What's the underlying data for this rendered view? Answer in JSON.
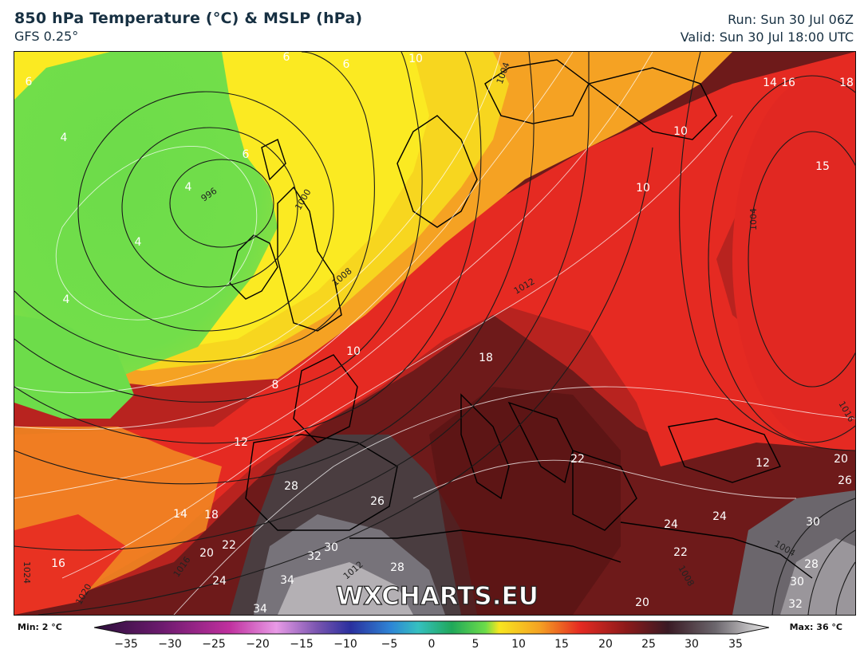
{
  "header": {
    "title": "850 hPa Temperature (°C) & MSLP (hPa)",
    "model": "GFS 0.25°",
    "run": "Run: Sun 30 Jul 06Z",
    "valid": "Valid: Sun 30 Jul 18:00 UTC"
  },
  "watermark": "WXCHARTS.EU",
  "colorbar": {
    "min_label": "Min: 2 °C",
    "max_label": "Max: 36 °C",
    "ticks": [
      "−35",
      "−30",
      "−25",
      "−20",
      "−15",
      "−10",
      "−5",
      "0",
      "5",
      "10",
      "15",
      "20",
      "25",
      "30",
      "35"
    ]
  },
  "map_labels": {
    "t1": "6",
    "t2": "4",
    "t3": "4",
    "t4": "4",
    "t5": "4",
    "t6": "6",
    "t7": "10",
    "t8": "10",
    "t9": "8",
    "t10": "12",
    "t11": "14",
    "t12": "18",
    "t13": "16",
    "t14": "20",
    "t15": "22",
    "t16": "24",
    "t17": "28",
    "t18": "26",
    "t19": "32",
    "t20": "30",
    "t21": "34",
    "t22": "28",
    "t23": "34",
    "t24": "18",
    "t25": "22",
    "t26": "24",
    "t27": "22",
    "t28": "24",
    "t29": "20",
    "t30": "12",
    "t31": "20",
    "t32": "26",
    "t33": "30",
    "t34": "28",
    "t35": "30",
    "t36": "32",
    "t37": "10",
    "t38": "10",
    "t39": "14",
    "t40": "16",
    "t41": "18",
    "t42": "15",
    "t43": "6",
    "t44": "6"
  },
  "isobar_labels": {
    "p1": "996",
    "p2": "1000",
    "p3": "1004",
    "p4": "1008",
    "p5": "1012",
    "p6": "1016",
    "p7": "1020",
    "p8": "1024",
    "p9": "1004",
    "p10": "1004",
    "p11": "1008",
    "p12": "1012",
    "p13": "1016"
  }
}
